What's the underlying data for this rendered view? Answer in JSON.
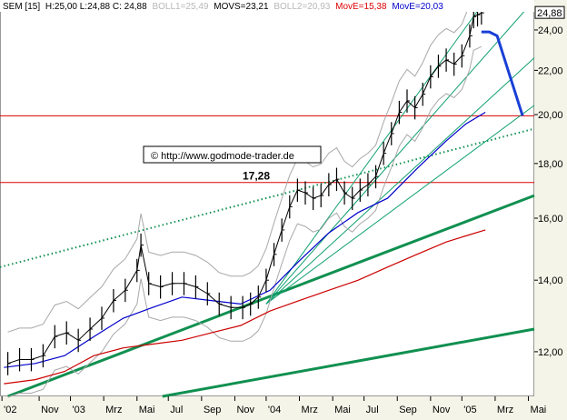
{
  "header": {
    "symbol": "SEM [15]",
    "ohlc": "H:25,00 L:24,88 C: 24,88",
    "boll1": "BOLL1=25,49",
    "movs": "MOVS=23,21",
    "boll2": "BOLL2=20,93",
    "move15": "MovE=15,38",
    "move20": "MovE=20,03"
  },
  "watermark": "© http://www.godmode-trader.de",
  "last_price_label": "24,88",
  "level_label": "17,28",
  "colors": {
    "price": "#000000",
    "support_levels": "#dd0000",
    "ema15": "#cc0000",
    "ema20": "#0000cc",
    "projection": "#1a3fd6",
    "trend_thick": "#109050",
    "channel": "#10a070",
    "bollinger": "#a8a8a8",
    "axis_bg": "#f4f4e8"
  },
  "chart_data": {
    "type": "line",
    "title": "",
    "xlabel": "",
    "ylabel": "",
    "yscale": "log",
    "ylim": [
      10.9,
      25.6
    ],
    "xlim": [
      2002.72,
      2005.45
    ],
    "y_ticks": [
      {
        "value": 12,
        "label": "12,00"
      },
      {
        "value": 14,
        "label": "14,00"
      },
      {
        "value": 16,
        "label": "16,00"
      },
      {
        "value": 18,
        "label": "18,00"
      },
      {
        "value": 20,
        "label": "20,00"
      },
      {
        "value": 22,
        "label": "22,00"
      },
      {
        "value": 24,
        "label": "24,00"
      }
    ],
    "x_ticks": [
      {
        "x": 2002.73,
        "label": "'02"
      },
      {
        "x": 2002.92,
        "label": "Nov"
      },
      {
        "x": 2003.08,
        "label": "'03"
      },
      {
        "x": 2003.25,
        "label": "Mrz"
      },
      {
        "x": 2003.42,
        "label": "Mai"
      },
      {
        "x": 2003.58,
        "label": "Jul"
      },
      {
        "x": 2003.75,
        "label": "Sep"
      },
      {
        "x": 2003.92,
        "label": "Nov"
      },
      {
        "x": 2004.08,
        "label": "'04"
      },
      {
        "x": 2004.25,
        "label": "Mrz"
      },
      {
        "x": 2004.42,
        "label": "Mai"
      },
      {
        "x": 2004.58,
        "label": "Jul"
      },
      {
        "x": 2004.75,
        "label": "Sep"
      },
      {
        "x": 2004.92,
        "label": "Nov"
      },
      {
        "x": 2005.08,
        "label": "'05"
      },
      {
        "x": 2005.25,
        "label": "Mrz"
      },
      {
        "x": 2005.42,
        "label": "Mai"
      }
    ],
    "horizontal_levels": [
      {
        "value": 19.95,
        "label": ""
      },
      {
        "value": 17.28,
        "label": "17,28"
      }
    ],
    "series": [
      {
        "kind": "price",
        "x": [
          2002.76,
          2002.82,
          2002.88,
          2002.94,
          2003.0,
          2003.06,
          2003.12,
          2003.18,
          2003.24,
          2003.3,
          2003.36,
          2003.42,
          2003.44,
          2003.48,
          2003.54,
          2003.6,
          2003.66,
          2003.72,
          2003.78,
          2003.84,
          2003.9,
          2003.96,
          2004.0,
          2004.04,
          2004.08,
          2004.12,
          2004.16,
          2004.2,
          2004.24,
          2004.28,
          2004.32,
          2004.36,
          2004.4,
          2004.44,
          2004.48,
          2004.52,
          2004.56,
          2004.6,
          2004.64,
          2004.68,
          2004.72,
          2004.76,
          2004.8,
          2004.84,
          2004.88,
          2004.92,
          2004.96,
          2005.0,
          2005.04,
          2005.08,
          2005.12,
          2005.14,
          2005.16,
          2005.18
        ],
        "values": [
          11.7,
          11.8,
          11.8,
          11.9,
          12.4,
          12.5,
          12.3,
          12.6,
          12.9,
          13.4,
          13.7,
          14.3,
          15.1,
          13.9,
          13.8,
          13.9,
          13.9,
          13.8,
          13.6,
          13.3,
          13.2,
          13.2,
          13.3,
          13.5,
          14.0,
          14.8,
          15.6,
          16.4,
          17.0,
          16.9,
          16.7,
          16.8,
          17.2,
          17.4,
          16.9,
          16.7,
          17.0,
          17.2,
          17.5,
          18.4,
          19.2,
          20.1,
          20.6,
          20.3,
          20.9,
          21.7,
          22.2,
          22.5,
          22.3,
          22.7,
          23.7,
          24.7,
          24.8,
          24.9
        ]
      },
      {
        "name": "MovE=15,38",
        "kind": "ema15",
        "x": [
          2002.74,
          2002.9,
          2003.05,
          2003.2,
          2003.35,
          2003.5,
          2003.65,
          2003.8,
          2003.95,
          2004.1,
          2004.25,
          2004.4,
          2004.55,
          2004.7,
          2004.85,
          2005.0,
          2005.1,
          2005.2
        ],
        "values": [
          11.2,
          11.3,
          11.5,
          11.9,
          12.1,
          12.2,
          12.3,
          12.5,
          12.7,
          13.1,
          13.4,
          13.7,
          14.0,
          14.4,
          14.8,
          15.2,
          15.4,
          15.6
        ]
      },
      {
        "name": "MovE=20,03",
        "kind": "ema20",
        "x": [
          2002.74,
          2002.9,
          2003.05,
          2003.2,
          2003.35,
          2003.5,
          2003.65,
          2003.8,
          2003.95,
          2004.1,
          2004.25,
          2004.4,
          2004.55,
          2004.7,
          2004.85,
          2005.0,
          2005.1,
          2005.2
        ],
        "values": [
          11.6,
          11.7,
          11.9,
          12.4,
          12.9,
          13.2,
          13.5,
          13.4,
          13.3,
          13.7,
          14.6,
          15.5,
          16.2,
          16.7,
          17.8,
          18.9,
          19.6,
          20.1
        ]
      },
      {
        "kind": "projection",
        "x": [
          2005.18,
          2005.22,
          2005.26,
          2005.39
        ],
        "values": [
          23.9,
          23.9,
          23.7,
          19.95
        ]
      }
    ],
    "trendlines": [
      {
        "kind": "thick",
        "x": [
          2002.76,
          2005.45
        ],
        "values": [
          10.9,
          16.8
        ]
      },
      {
        "kind": "thick",
        "x": [
          2003.55,
          2005.45
        ],
        "values": [
          10.9,
          12.6
        ]
      },
      {
        "kind": "dotted",
        "x": [
          2002.72,
          2005.45
        ],
        "values": [
          14.4,
          19.4
        ]
      },
      {
        "kind": "channel",
        "x": [
          2004.08,
          2005.2
        ],
        "values": [
          13.3,
          25.6
        ]
      },
      {
        "kind": "channel",
        "x": [
          2004.08,
          2005.45
        ],
        "values": [
          13.3,
          25.6
        ]
      },
      {
        "kind": "channel",
        "x": [
          2004.08,
          2005.45
        ],
        "values": [
          13.3,
          22.6
        ]
      },
      {
        "kind": "channel",
        "x": [
          2004.08,
          2005.45
        ],
        "values": [
          13.3,
          20.4
        ]
      }
    ]
  }
}
